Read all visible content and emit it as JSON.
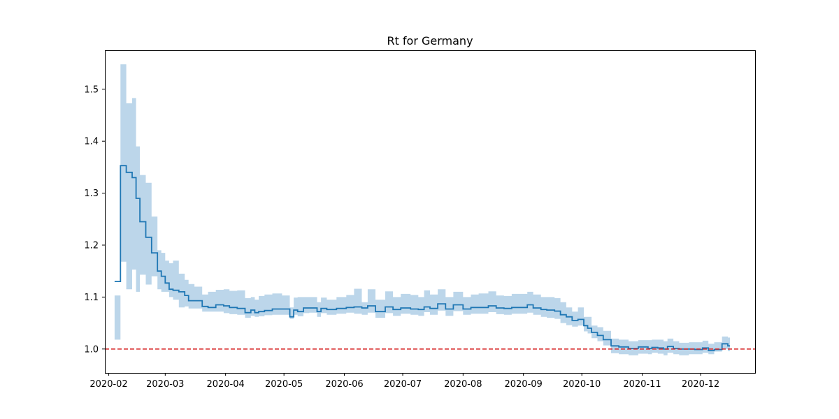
{
  "chart_data": {
    "type": "line",
    "title": "Rt for Germany",
    "xlabel": "",
    "ylabel": "",
    "x_range": [
      "2020-01-30",
      "2020-12-29"
    ],
    "ylim": [
      0.954,
      1.575
    ],
    "x_ticks": [
      "2020-02",
      "2020-03",
      "2020-04",
      "2020-05",
      "2020-06",
      "2020-07",
      "2020-08",
      "2020-09",
      "2020-10",
      "2020-11",
      "2020-12"
    ],
    "y_ticks": [
      "1.0",
      "1.1",
      "1.2",
      "1.3",
      "1.4",
      "1.5"
    ],
    "grid": false,
    "legend": "none",
    "reference_line": {
      "y": 1.0,
      "style": "dashed",
      "color": "#d62728"
    },
    "colors": {
      "line": "#1f77b4",
      "band": "#bcd6ea"
    },
    "series": [
      {
        "x": [
          "2020-02-04",
          "2020-02-06",
          "2020-02-07",
          "2020-02-09",
          "2020-02-10",
          "2020-02-12",
          "2020-02-13",
          "2020-02-15",
          "2020-02-17",
          "2020-02-20",
          "2020-02-23",
          "2020-02-26",
          "2020-02-28",
          "2020-03-01",
          "2020-03-03",
          "2020-03-05",
          "2020-03-08",
          "2020-03-11",
          "2020-03-13",
          "2020-03-16",
          "2020-03-20",
          "2020-03-23",
          "2020-03-27",
          "2020-03-31",
          "2020-04-03",
          "2020-04-07",
          "2020-04-11",
          "2020-04-14",
          "2020-04-16",
          "2020-04-18",
          "2020-04-21",
          "2020-04-25",
          "2020-04-30",
          "2020-05-04",
          "2020-05-06",
          "2020-05-08",
          "2020-05-11",
          "2020-05-14",
          "2020-05-18",
          "2020-05-20",
          "2020-05-23",
          "2020-05-28",
          "2020-06-02",
          "2020-06-06",
          "2020-06-10",
          "2020-06-13",
          "2020-06-17",
          "2020-06-22",
          "2020-06-26",
          "2020-06-30",
          "2020-07-05",
          "2020-07-09",
          "2020-07-12",
          "2020-07-15",
          "2020-07-19",
          "2020-07-23",
          "2020-07-27",
          "2020-08-01",
          "2020-08-05",
          "2020-08-09",
          "2020-08-14",
          "2020-08-18",
          "2020-08-22",
          "2020-08-26",
          "2020-08-30",
          "2020-09-03",
          "2020-09-06",
          "2020-09-10",
          "2020-09-13",
          "2020-09-17",
          "2020-09-20",
          "2020-09-23",
          "2020-09-26",
          "2020-09-29",
          "2020-10-02",
          "2020-10-04",
          "2020-10-06",
          "2020-10-09",
          "2020-10-12",
          "2020-10-16",
          "2020-10-20",
          "2020-10-25",
          "2020-10-30",
          "2020-11-04",
          "2020-11-06",
          "2020-11-09",
          "2020-11-12",
          "2020-11-14",
          "2020-11-17",
          "2020-11-20",
          "2020-11-25",
          "2020-11-28",
          "2020-12-02",
          "2020-12-05",
          "2020-12-08",
          "2020-12-12",
          "2020-12-15"
        ],
        "y": [
          1.13,
          1.13,
          1.353,
          1.353,
          1.34,
          1.34,
          1.33,
          1.29,
          1.245,
          1.215,
          1.185,
          1.15,
          1.14,
          1.127,
          1.115,
          1.113,
          1.11,
          1.103,
          1.093,
          1.093,
          1.082,
          1.08,
          1.085,
          1.083,
          1.08,
          1.078,
          1.07,
          1.075,
          1.07,
          1.072,
          1.074,
          1.077,
          1.077,
          1.062,
          1.075,
          1.072,
          1.079,
          1.079,
          1.072,
          1.078,
          1.076,
          1.078,
          1.08,
          1.081,
          1.079,
          1.083,
          1.072,
          1.081,
          1.076,
          1.079,
          1.077,
          1.076,
          1.081,
          1.078,
          1.087,
          1.077,
          1.085,
          1.077,
          1.08,
          1.08,
          1.083,
          1.079,
          1.078,
          1.08,
          1.08,
          1.085,
          1.079,
          1.076,
          1.075,
          1.073,
          1.066,
          1.062,
          1.055,
          1.057,
          1.045,
          1.04,
          1.032,
          1.026,
          1.018,
          1.006,
          1.004,
          1.001,
          1.004,
          1.001,
          1.003,
          1.002,
          1.0,
          1.005,
          1.001,
          1.0,
          1.0,
          0.999,
          1.002,
          0.997,
          0.999,
          1.01,
          1.006
        ],
        "upper": [
          1.103,
          1.103,
          1.548,
          1.548,
          1.473,
          1.473,
          1.483,
          1.39,
          1.335,
          1.32,
          1.255,
          1.19,
          1.185,
          1.17,
          1.165,
          1.17,
          1.145,
          1.133,
          1.125,
          1.12,
          1.105,
          1.11,
          1.114,
          1.115,
          1.112,
          1.113,
          1.098,
          1.1,
          1.095,
          1.102,
          1.105,
          1.107,
          1.103,
          1.08,
          1.099,
          1.1,
          1.1,
          1.1,
          1.09,
          1.099,
          1.095,
          1.1,
          1.104,
          1.116,
          1.09,
          1.115,
          1.095,
          1.111,
          1.1,
          1.106,
          1.104,
          1.1,
          1.113,
          1.105,
          1.115,
          1.1,
          1.11,
          1.1,
          1.105,
          1.107,
          1.111,
          1.103,
          1.102,
          1.106,
          1.106,
          1.11,
          1.105,
          1.1,
          1.1,
          1.098,
          1.09,
          1.08,
          1.072,
          1.08,
          1.062,
          1.062,
          1.045,
          1.042,
          1.035,
          1.02,
          1.018,
          1.015,
          1.017,
          1.017,
          1.018,
          1.018,
          1.015,
          1.02,
          1.015,
          1.012,
          1.013,
          1.013,
          1.016,
          1.01,
          1.013,
          1.024,
          1.022
        ],
        "lower": [
          1.018,
          1.018,
          1.168,
          1.168,
          1.115,
          1.115,
          1.153,
          1.11,
          1.143,
          1.124,
          1.14,
          1.115,
          1.11,
          1.11,
          1.1,
          1.095,
          1.08,
          1.082,
          1.078,
          1.078,
          1.072,
          1.072,
          1.072,
          1.069,
          1.067,
          1.066,
          1.06,
          1.064,
          1.062,
          1.063,
          1.065,
          1.066,
          1.066,
          1.058,
          1.066,
          1.063,
          1.069,
          1.07,
          1.062,
          1.069,
          1.066,
          1.068,
          1.07,
          1.068,
          1.066,
          1.07,
          1.06,
          1.069,
          1.064,
          1.068,
          1.066,
          1.064,
          1.071,
          1.066,
          1.074,
          1.064,
          1.073,
          1.066,
          1.068,
          1.068,
          1.071,
          1.067,
          1.066,
          1.068,
          1.068,
          1.07,
          1.066,
          1.062,
          1.06,
          1.058,
          1.05,
          1.046,
          1.043,
          1.045,
          1.034,
          1.03,
          1.021,
          1.015,
          1.007,
          0.992,
          0.99,
          0.988,
          0.991,
          0.99,
          0.993,
          0.991,
          0.988,
          0.993,
          0.99,
          0.988,
          0.99,
          0.99,
          0.993,
          0.99,
          0.995,
          1.0,
          0.996
        ]
      }
    ]
  }
}
